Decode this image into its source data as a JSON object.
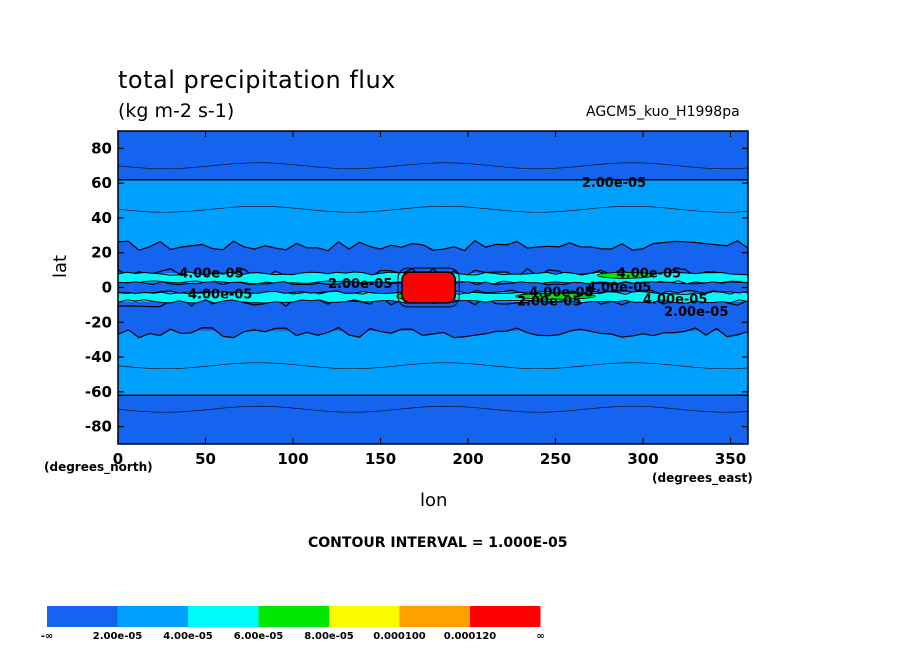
{
  "title": "total precipitation flux",
  "units": "(kg m-2 s-1)",
  "dataset": "AGCM5_kuo_H1998pa",
  "contour_interval": "CONTOUR INTERVAL = 1.000E-05",
  "colors": {
    "level0": "#1464f0",
    "level1": "#00a0ff",
    "level2": "#00fafa",
    "level3": "#00e600",
    "level4": "#fafa00",
    "level5": "#ffa000",
    "level6": "#ff0000"
  },
  "chart_data": {
    "type": "heatmap",
    "title": "total precipitation flux",
    "subtitle": "(kg m-2 s-1)",
    "xlabel": "lon",
    "ylabel": "lat",
    "x_unit_label": "(degrees_east)",
    "y_unit_label": "(degrees_north)",
    "xlim": [
      0,
      360
    ],
    "ylim": [
      -90,
      90
    ],
    "x_ticks": [
      "0",
      "50",
      "100",
      "150",
      "200",
      "250",
      "300",
      "350"
    ],
    "y_ticks": [
      "80",
      "60",
      "40",
      "20",
      "0",
      "-20",
      "-40",
      "-60",
      "-80"
    ],
    "legend": {
      "placement": "bottom",
      "labels": [
        "-∞",
        "2.00e-05",
        "4.00e-05",
        "6.00e-05",
        "8.00e-05",
        "0.000100",
        "0.000120",
        "∞"
      ],
      "bins": [
        {
          "range": "< 2.00e-05"
        },
        {
          "range": "2.00e-05 – 4.00e-05"
        },
        {
          "range": "4.00e-05 – 6.00e-05"
        },
        {
          "range": "6.00e-05 – 8.00e-05"
        },
        {
          "range": "8.00e-05 – 0.000100"
        },
        {
          "range": "0.000100 – 0.000120"
        },
        {
          "range": "> 0.000120"
        }
      ]
    },
    "contour_labels": [
      {
        "text": "2.00e-05",
        "lon": 265,
        "lat": 60
      },
      {
        "text": "4.00e-05",
        "lon": 35,
        "lat": 8
      },
      {
        "text": "4.00e-05",
        "lon": 40,
        "lat": -4
      },
      {
        "text": "2.00e-05",
        "lon": 120,
        "lat": 2
      },
      {
        "text": "4.00e-05",
        "lon": 285,
        "lat": 8
      },
      {
        "text": "4.00e-05",
        "lon": 268,
        "lat": 0
      },
      {
        "text": "4.00e-05",
        "lon": 235,
        "lat": -3
      },
      {
        "text": "2.00e-05",
        "lon": 228,
        "lat": -8
      },
      {
        "text": "4.00e-05",
        "lon": 300,
        "lat": -7
      },
      {
        "text": "2.00e-05",
        "lon": 312,
        "lat": -14
      }
    ],
    "regions": [
      {
        "name": "polar-north",
        "lat_range": [
          62,
          90
        ],
        "bin": 0
      },
      {
        "name": "midlat-north",
        "lat_range": [
          22,
          62
        ],
        "bin": 1
      },
      {
        "name": "subtropics-north",
        "lat_range": [
          8,
          22
        ],
        "bin": 0
      },
      {
        "name": "itcz-north",
        "lat_range": [
          3,
          8
        ],
        "bin": 2
      },
      {
        "name": "equatorial-core",
        "lat_range": [
          -3,
          3
        ],
        "bin": 0
      },
      {
        "name": "itcz-south",
        "lat_range": [
          -8,
          -3
        ],
        "bin": 2
      },
      {
        "name": "subtropics-south",
        "lat_range": [
          -25,
          -8
        ],
        "bin": 0
      },
      {
        "name": "midlat-south",
        "lat_range": [
          -62,
          -25
        ],
        "bin": 1
      },
      {
        "name": "polar-south",
        "lat_range": [
          -90,
          -62
        ],
        "bin": 0
      },
      {
        "name": "maximum-near-dateline",
        "lon_range": [
          160,
          195
        ],
        "lat_range": [
          -10,
          10
        ],
        "bin": 6
      }
    ]
  }
}
